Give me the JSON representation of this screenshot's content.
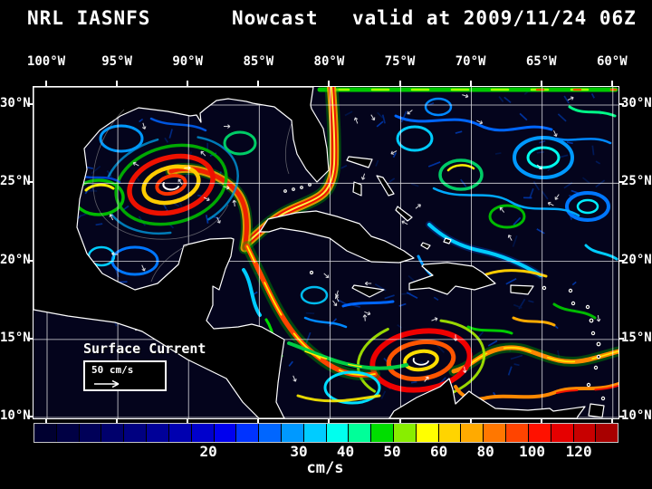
{
  "header": {
    "product": "NRL IASNFS",
    "mode": "Nowcast",
    "valid": "valid at 2009/11/24 06Z"
  },
  "map": {
    "lon_labels": [
      "100°W",
      "95°W",
      "90°W",
      "85°W",
      "80°W",
      "75°W",
      "70°W",
      "65°W",
      "60°W"
    ],
    "lat_labels": [
      "30°N",
      "25°N",
      "20°N",
      "15°N",
      "10°N"
    ],
    "annotation": "Surface Current",
    "scale_label": "50 cm/s"
  },
  "colorbar": {
    "units": "cm/s",
    "ticks": [
      {
        "label": "20",
        "pct": 30.0
      },
      {
        "label": "30",
        "pct": 45.5
      },
      {
        "label": "40",
        "pct": 53.5
      },
      {
        "label": "50",
        "pct": 61.5
      },
      {
        "label": "60",
        "pct": 69.5
      },
      {
        "label": "80",
        "pct": 77.5
      },
      {
        "label": "100",
        "pct": 85.5
      },
      {
        "label": "120",
        "pct": 93.5
      }
    ],
    "segments": [
      "#000030",
      "#000044",
      "#000058",
      "#00006c",
      "#000080",
      "#000098",
      "#0000b0",
      "#0000cc",
      "#0000ee",
      "#0033ff",
      "#0066ff",
      "#0099ff",
      "#00ccff",
      "#00ffee",
      "#00ff99",
      "#00dd00",
      "#88ee00",
      "#ffff00",
      "#ffd400",
      "#ffaa00",
      "#ff7700",
      "#ff4400",
      "#ff1100",
      "#e60000",
      "#c80000",
      "#a80000"
    ]
  },
  "colors": {
    "background": "#000000",
    "ocean": "#04041c",
    "land": "#000000",
    "coastline": "#ffffff",
    "grid": "#ffffff",
    "text": "#ffffff"
  }
}
